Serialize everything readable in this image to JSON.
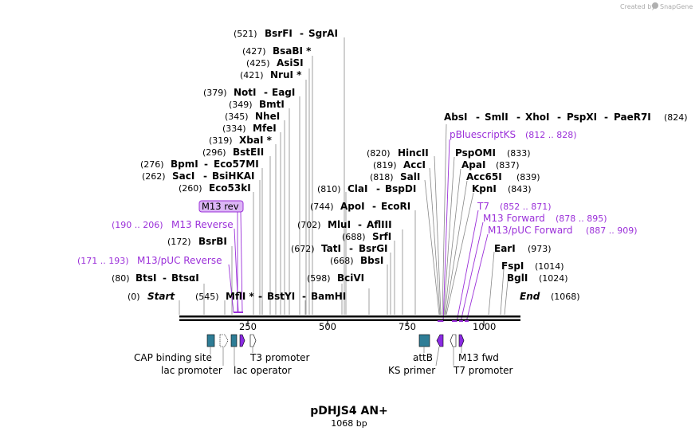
{
  "brand": {
    "created_by": "Created by",
    "name": "SnapGene"
  },
  "title": "pDHJS4 AN+",
  "subtitle": "1068 bp",
  "axis": {
    "start": "Start",
    "start_pos": "(0)",
    "end": "End",
    "end_pos": "(1068)",
    "ticks": [
      "250",
      "500",
      "750",
      "1000"
    ]
  },
  "sites": [
    {
      "pos": "(521)",
      "names": [
        "BsrFI",
        "SgrAI"
      ]
    },
    {
      "pos": "(427)",
      "names": [
        "BsaBI *"
      ]
    },
    {
      "pos": "(425)",
      "names": [
        "AsiSI"
      ]
    },
    {
      "pos": "(421)",
      "names": [
        "NruI *"
      ]
    },
    {
      "pos": "(379)",
      "names": [
        "NotI",
        "EagI"
      ]
    },
    {
      "pos": "(349)",
      "names": [
        "BmtI"
      ]
    },
    {
      "pos": "(345)",
      "names": [
        "NheI"
      ]
    },
    {
      "pos": "(334)",
      "names": [
        "MfeI"
      ]
    },
    {
      "pos": "(319)",
      "names": [
        "XbaI *"
      ]
    },
    {
      "pos": "(296)",
      "names": [
        "BstEII"
      ]
    },
    {
      "pos": "(276)",
      "names": [
        "BpmI",
        "Eco57MI"
      ]
    },
    {
      "pos": "(262)",
      "names": [
        "SacI",
        "BsiHKAI"
      ]
    },
    {
      "pos": "(260)",
      "names": [
        "Eco53kI"
      ]
    },
    {
      "pos": "(172)",
      "names": [
        "BsrBI"
      ]
    },
    {
      "pos": "(80)",
      "names": [
        "BtsI",
        "BtsαI"
      ]
    },
    {
      "pos": "(545)",
      "names": [
        "MflI *",
        "BstYI",
        "BamHI"
      ]
    },
    {
      "pos": "(810)",
      "names": [
        "ClaI",
        "BspDI"
      ]
    },
    {
      "pos": "(744)",
      "names": [
        "ApoI",
        "EcoRI"
      ]
    },
    {
      "pos": "(702)",
      "names": [
        "MluI",
        "AflIII"
      ]
    },
    {
      "pos": "(688)",
      "names": [
        "SrfI"
      ]
    },
    {
      "pos": "(672)",
      "names": [
        "TatI",
        "BsrGI"
      ]
    },
    {
      "pos": "(668)",
      "names": [
        "BbsI"
      ]
    },
    {
      "pos": "(598)",
      "names": [
        "BciVI"
      ]
    },
    {
      "pos": "(820)",
      "names": [
        "HincII"
      ]
    },
    {
      "pos": "(819)",
      "names": [
        "AccI"
      ]
    },
    {
      "pos": "(818)",
      "names": [
        "SalI"
      ]
    },
    {
      "pos": "(824)",
      "names": [
        "AbsI",
        "SmlI",
        "XhoI",
        "PspXI",
        "PaeR7I"
      ]
    },
    {
      "pos": "(833)",
      "names": [
        "PspOMI"
      ]
    },
    {
      "pos": "(837)",
      "names": [
        "ApaI"
      ]
    },
    {
      "pos": "(839)",
      "names": [
        "Acc65I"
      ]
    },
    {
      "pos": "(843)",
      "names": [
        "KpnI"
      ]
    },
    {
      "pos": "(973)",
      "names": [
        "EarI"
      ]
    },
    {
      "pos": "(1014)",
      "names": [
        "FspI"
      ]
    },
    {
      "pos": "(1024)",
      "names": [
        "BglI"
      ]
    }
  ],
  "primers": [
    {
      "name": "M13 rev"
    },
    {
      "name": "M13 Reverse",
      "range": "(190 .. 206)"
    },
    {
      "name": "M13/pUC Reverse",
      "range": "(171 .. 193)"
    },
    {
      "name": "pBluescriptKS",
      "range": "(812 .. 828)"
    },
    {
      "name": "T7",
      "range": "(852 .. 871)"
    },
    {
      "name": "M13 Forward",
      "range": "(878 .. 895)"
    },
    {
      "name": "M13/pUC Forward",
      "range": "(887 .. 909)"
    }
  ],
  "features": [
    "CAP binding site",
    "lac promoter",
    "lac operator",
    "T3 promoter",
    "attB",
    "KS primer",
    "M13 fwd",
    "T7 promoter"
  ],
  "colors": {
    "primer": "#9b30d9",
    "feature_teal": "#2e7d96",
    "feature_purple": "#8a2be2",
    "bind_box": "#dcb6f5"
  }
}
